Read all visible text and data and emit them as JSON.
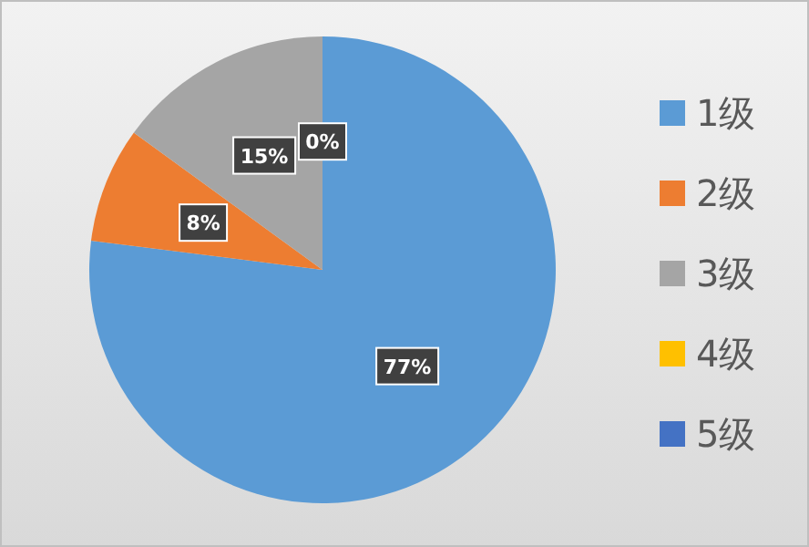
{
  "chart_data": {
    "type": "pie",
    "categories": [
      "1级",
      "2级",
      "3级",
      "4级",
      "5级"
    ],
    "values": [
      77,
      8,
      15,
      0,
      0
    ],
    "colors": [
      "#5b9bd5",
      "#ed7d31",
      "#a5a5a5",
      "#ffc000",
      "#4472c4"
    ],
    "value_labels": [
      "77%",
      "8%",
      "15%",
      "0%",
      null
    ],
    "legend": "right"
  }
}
